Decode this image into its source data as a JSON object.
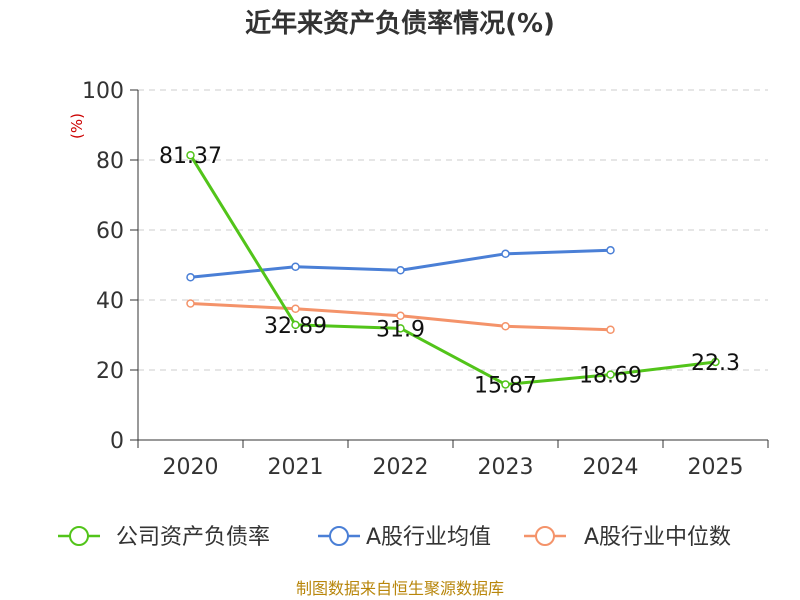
{
  "chart_data": {
    "type": "line",
    "title": "近年来资产负债率情况(%)",
    "ylabel": "(%)",
    "ylim": [
      0,
      100
    ],
    "yticks": [
      0,
      20,
      40,
      60,
      80,
      100
    ],
    "grid": true,
    "legend_position": "bottom",
    "categories": [
      "2020",
      "2021",
      "2022",
      "2023",
      "2024",
      "2025"
    ],
    "series": [
      {
        "name": "公司资产负债率",
        "color": "#52c41a",
        "values": [
          81.37,
          32.89,
          31.9,
          15.87,
          18.69,
          22.3
        ],
        "data_labels": [
          "81.37",
          "32.89",
          "31.9",
          "15.87",
          "18.69",
          "22.3"
        ]
      },
      {
        "name": "A股行业均值",
        "color": "#4a7fd6",
        "values": [
          46.5,
          49.5,
          48.5,
          53.2,
          54.2,
          null
        ]
      },
      {
        "name": "A股行业中位数",
        "color": "#f4936a",
        "values": [
          39.0,
          37.5,
          35.5,
          32.5,
          31.5,
          null
        ]
      }
    ],
    "source": "制图数据来自恒生聚源数据库"
  }
}
